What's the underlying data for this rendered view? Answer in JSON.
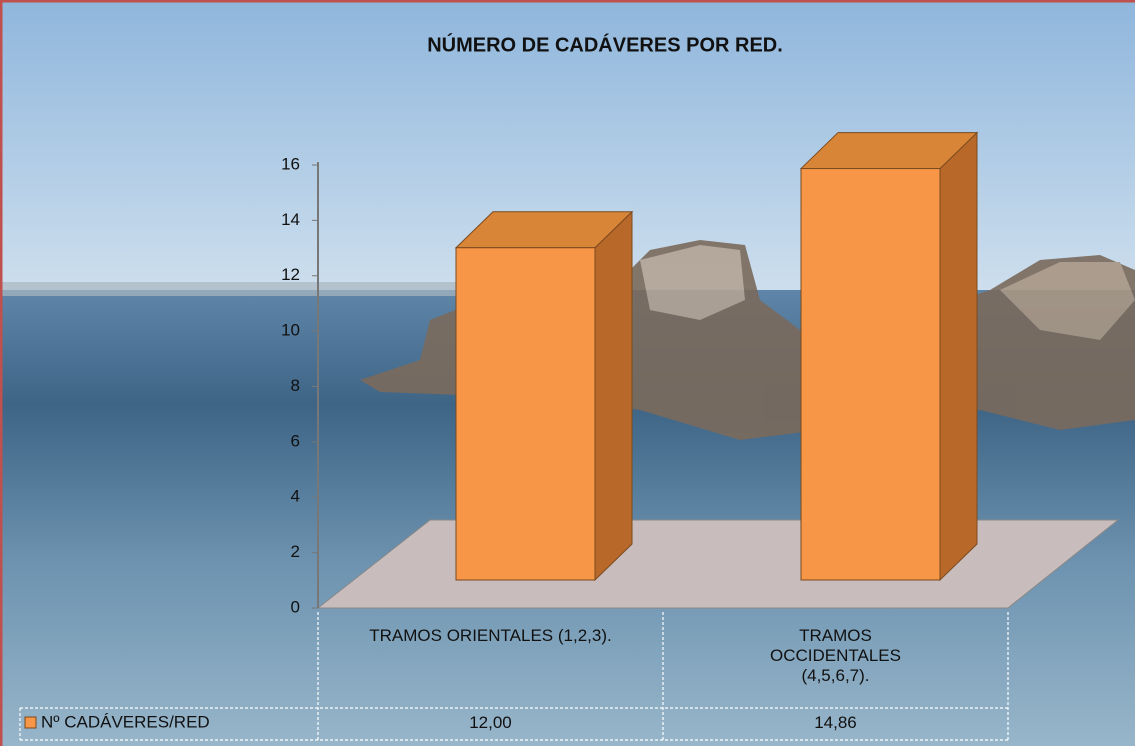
{
  "chart_data": {
    "type": "bar3d",
    "title": "NÚMERO DE CADÁVERES POR RED.",
    "categories": [
      "TRAMOS ORIENTALES (1,2,3).",
      "TRAMOS OCCIDENTALES (4,5,6,7)."
    ],
    "series": [
      {
        "name": "Nº CADÁVERES/RED",
        "color": "#f79646",
        "values": [
          12,
          14.86
        ],
        "value_labels": [
          "12,00",
          "14,86"
        ]
      }
    ],
    "ylim": [
      0,
      16
    ],
    "yticks": [
      0,
      2,
      4,
      6,
      8,
      10,
      12,
      14,
      16
    ],
    "data_table": true
  }
}
